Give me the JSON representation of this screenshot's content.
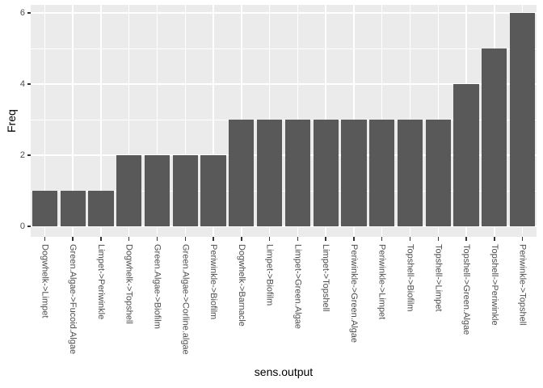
{
  "chart_data": {
    "type": "bar",
    "title": "",
    "xlabel": "sens.output",
    "ylabel": "Freq",
    "categories": [
      "Dogwhelk->Limpet",
      "Green.Algae->Fucoid.Algae",
      "Limpet->Periwinkle",
      "Dogwhelk->Topshell",
      "Green.Algae->Biofilm",
      "Green.Algae->Corline.algae",
      "Periwinkle->Biofilm",
      "Dogwhelk->Barnacle",
      "Limpet->Biofilm",
      "Limpet->Green.Algae",
      "Limpet->Topshell",
      "Periwinkle->Green.Algae",
      "Periwinkle->Limpet",
      "Topshell->Biofilm",
      "Topshell->Limpet",
      "Topshell->Green.Algae",
      "Topshell->Periwinkle",
      "Periwinkle->Topshell"
    ],
    "values": [
      1,
      1,
      1,
      2,
      2,
      2,
      2,
      3,
      3,
      3,
      3,
      3,
      3,
      3,
      3,
      4,
      5,
      6
    ],
    "ylim": [
      0,
      6.3
    ],
    "yticks": [
      0,
      2,
      4,
      6
    ],
    "minor_gridlines": [
      1,
      3,
      5
    ],
    "grid": "major-and-minor-horizontal-plus-vertical-at-category-centers",
    "legend": "none",
    "bar_width_fraction": 0.9,
    "colors": {
      "bar_fill": "#595959",
      "panel_background": "#EBEBEB",
      "gridline": "#FFFFFF",
      "axis_text": "#4D4D4D",
      "axis_title": "#000000",
      "tick_mark": "#333333",
      "page_background": "#FFFFFF"
    }
  }
}
